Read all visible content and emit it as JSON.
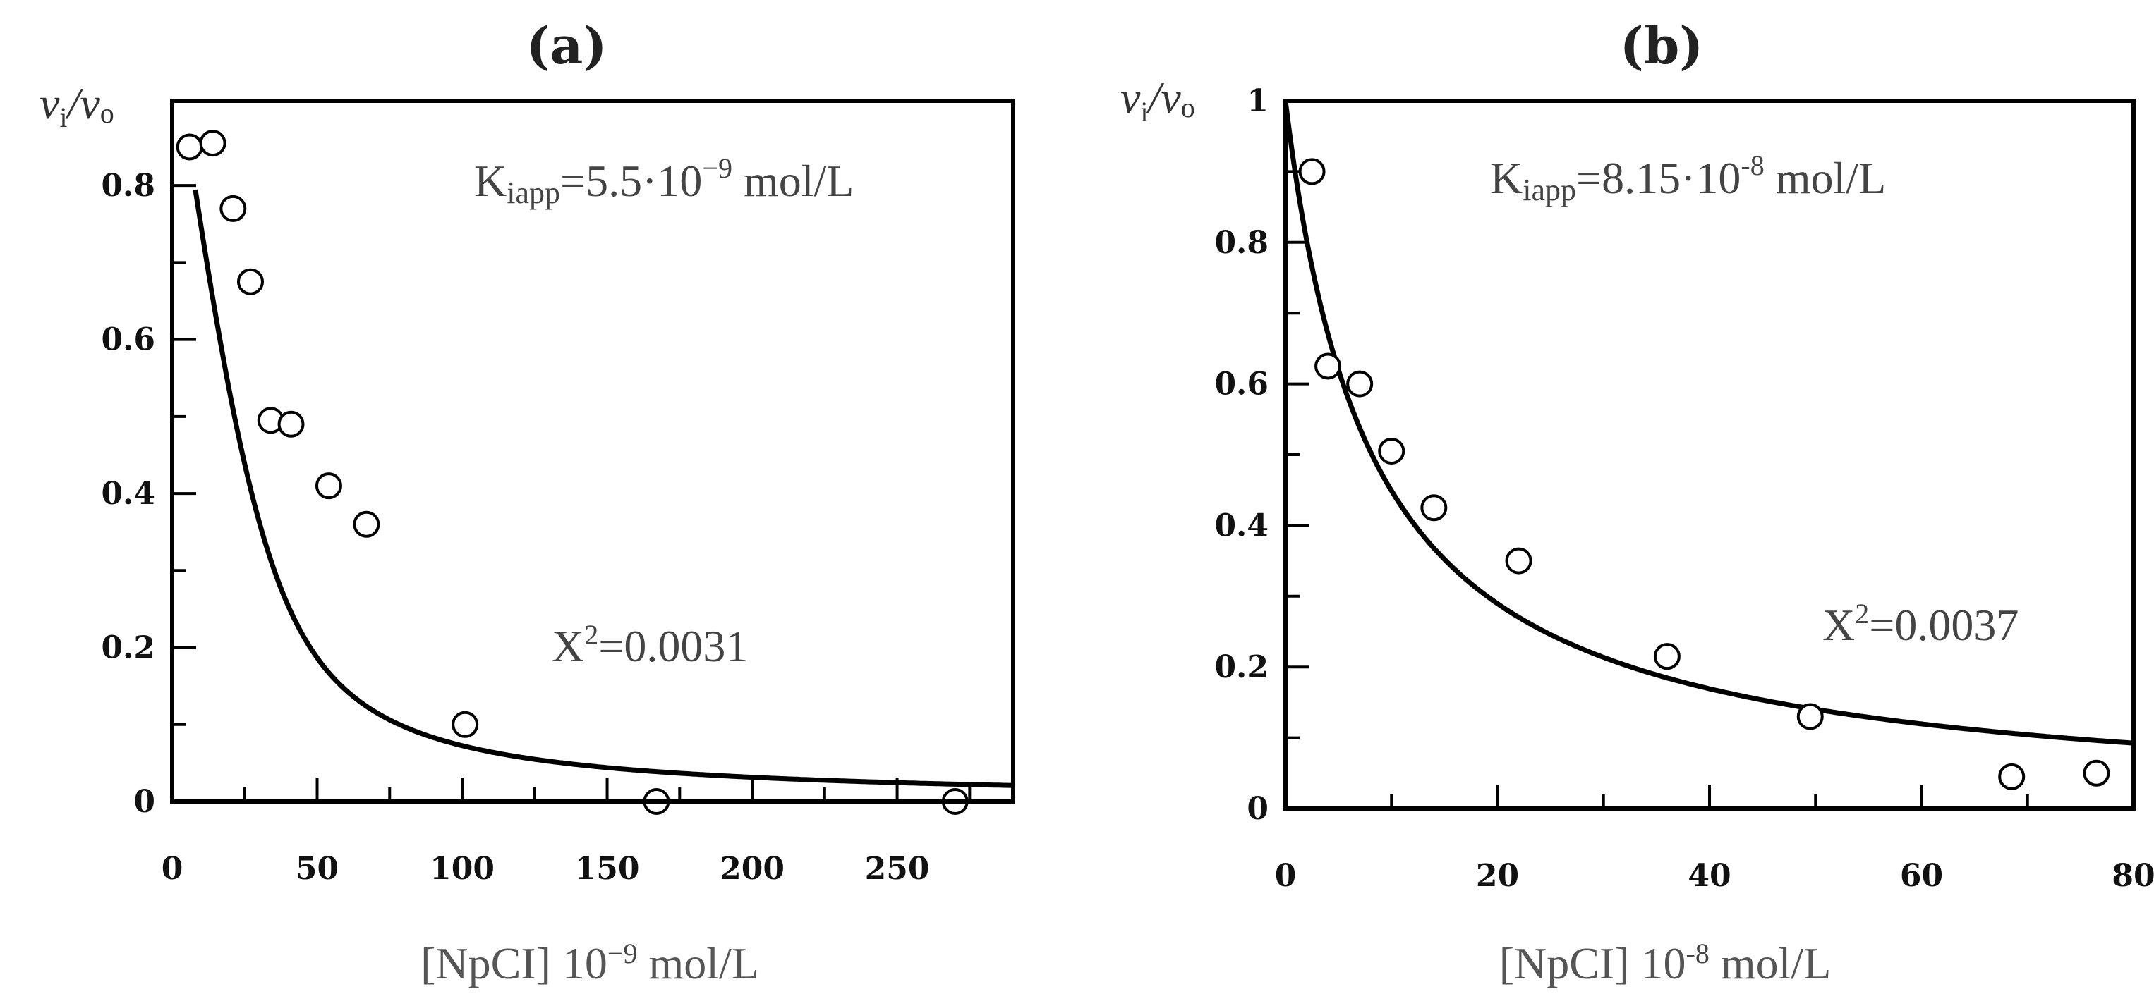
{
  "chart_data": [
    {
      "type": "scatter",
      "panel_label": "(a)",
      "ylabel": {
        "main": "v",
        "sub_i": "i",
        "slash": "/",
        "main2": "v",
        "sub_o": "o"
      },
      "xlabel": {
        "prefix": "[NpCI] 10",
        "exp": "−9",
        "suffix": " mol/L"
      },
      "xlim": [
        0,
        290
      ],
      "ylim": [
        0,
        0.91
      ],
      "x_ticks": [
        0,
        50,
        100,
        150,
        200,
        250
      ],
      "x_tick_labels": [
        "0",
        "50",
        "100",
        "150",
        "200",
        "250"
      ],
      "y_ticks": [
        0,
        0.2,
        0.4,
        0.6,
        0.8
      ],
      "y_tick_labels": [
        "0",
        "0.2",
        "0.4",
        "0.6",
        "0.8"
      ],
      "x_minor_ticks": [
        25,
        75,
        125,
        175,
        225,
        275
      ],
      "y_minor_ticks": [
        0.1,
        0.3,
        0.5,
        0.7
      ],
      "points": [
        {
          "x": 6,
          "y": 0.85
        },
        {
          "x": 14,
          "y": 0.855
        },
        {
          "x": 21,
          "y": 0.77
        },
        {
          "x": 27,
          "y": 0.675
        },
        {
          "x": 34,
          "y": 0.495
        },
        {
          "x": 41,
          "y": 0.49
        },
        {
          "x": 54,
          "y": 0.41
        },
        {
          "x": 67,
          "y": 0.36
        },
        {
          "x": 101,
          "y": 0.1
        },
        {
          "x": 167,
          "y": 0.0
        },
        {
          "x": 270,
          "y": 0.0
        }
      ],
      "fit": {
        "model": "Morrison tight-binding",
        "E0": 32,
        "Kiapp": 5.5,
        "x_end": 290
      },
      "annotations": {
        "k_main": "K",
        "k_sub": "iapp",
        "k_value": "=5.5·10",
        "k_exp": "−9",
        "k_unit": " mol/L",
        "chi_main": "X",
        "chi_sup": "2",
        "chi_value": "=0.0031"
      }
    },
    {
      "type": "scatter",
      "panel_label": "(b)",
      "ylabel": {
        "main": "v",
        "sub_i": "i",
        "slash": "/",
        "main2": "v",
        "sub_o": "o"
      },
      "xlabel": {
        "prefix": "[NpCI] 10",
        "exp": "-8",
        "suffix": " mol/L"
      },
      "xlim": [
        0,
        80
      ],
      "ylim": [
        0,
        1.0
      ],
      "x_ticks": [
        0,
        20,
        40,
        60,
        80
      ],
      "x_tick_labels": [
        "0",
        "20",
        "40",
        "60",
        "80"
      ],
      "y_ticks": [
        0,
        0.2,
        0.4,
        0.6,
        0.8,
        1
      ],
      "y_tick_labels": [
        "0",
        "0.2",
        "0.4",
        "0.6",
        "0.8",
        "1"
      ],
      "x_minor_ticks": [
        10,
        30,
        50,
        70
      ],
      "y_minor_ticks": [
        0.1,
        0.3,
        0.5,
        0.7,
        0.9
      ],
      "points": [
        {
          "x": 2.5,
          "y": 0.9
        },
        {
          "x": 4,
          "y": 0.625
        },
        {
          "x": 7,
          "y": 0.6
        },
        {
          "x": 10,
          "y": 0.505
        },
        {
          "x": 14,
          "y": 0.425
        },
        {
          "x": 22,
          "y": 0.35
        },
        {
          "x": 36,
          "y": 0.215
        },
        {
          "x": 49.5,
          "y": 0.13
        },
        {
          "x": 68.5,
          "y": 0.045
        },
        {
          "x": 76.5,
          "y": 0.05
        }
      ],
      "fit": {
        "model": "hyperbolic",
        "Kiapp": 8.15,
        "x_end": 80
      },
      "annotations": {
        "k_main": "K",
        "k_sub": "iapp",
        "k_value": "=8.15·10",
        "k_exp": "-8",
        "k_unit": " mol/L",
        "chi_main": "X",
        "chi_sup": "2",
        "chi_value": "=0.0037"
      }
    }
  ]
}
